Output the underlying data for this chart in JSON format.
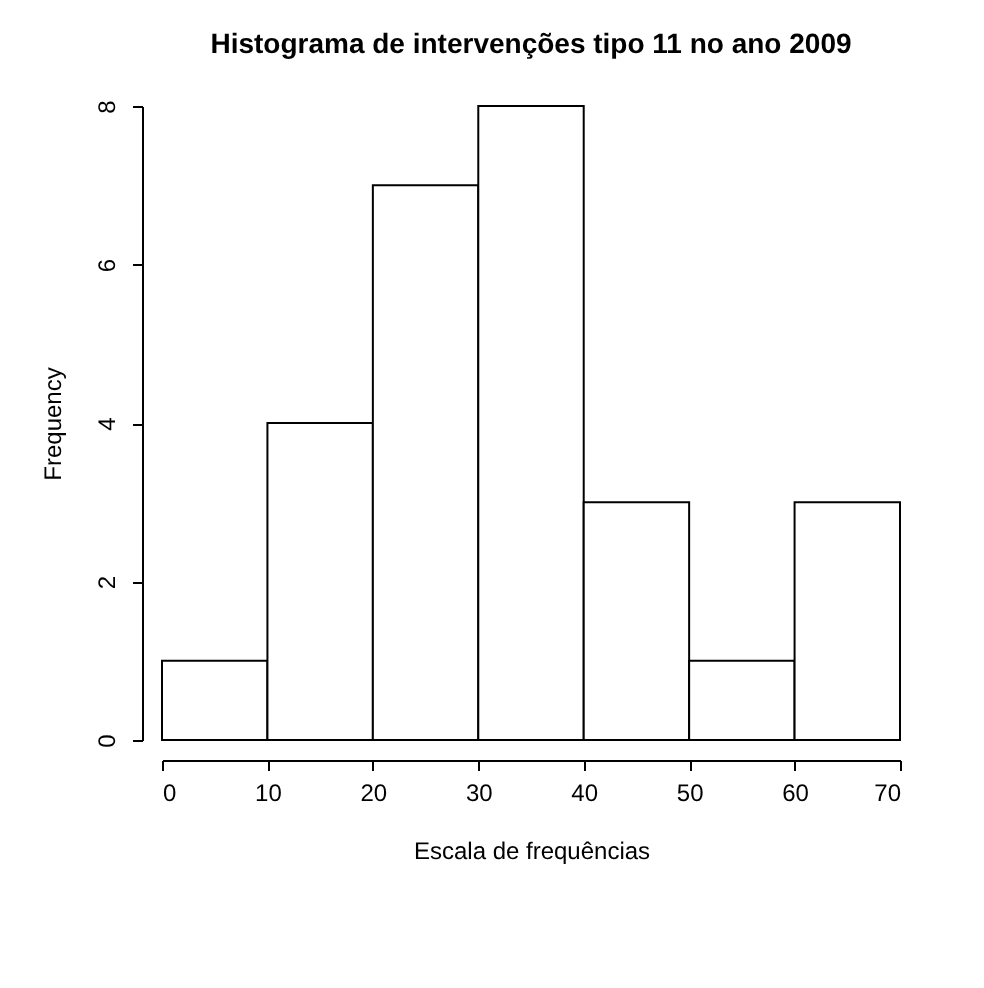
{
  "chart_data": {
    "type": "histogram",
    "title": "Histograma de intervenções tipo 11 no ano 2009",
    "xlabel": "Escala de frequências",
    "ylabel": "Frequency",
    "bins": [
      0,
      10,
      20,
      30,
      40,
      50,
      60,
      70
    ],
    "values": [
      1,
      4,
      7,
      8,
      3,
      1,
      3
    ],
    "color": "#ffffff",
    "xlim": [
      0,
      70
    ],
    "xticks": [
      0,
      10,
      20,
      30,
      40,
      50,
      60,
      70
    ],
    "ylim": [
      0,
      8
    ],
    "yticks": [
      0,
      2,
      4,
      6,
      8
    ],
    "grid": false
  }
}
